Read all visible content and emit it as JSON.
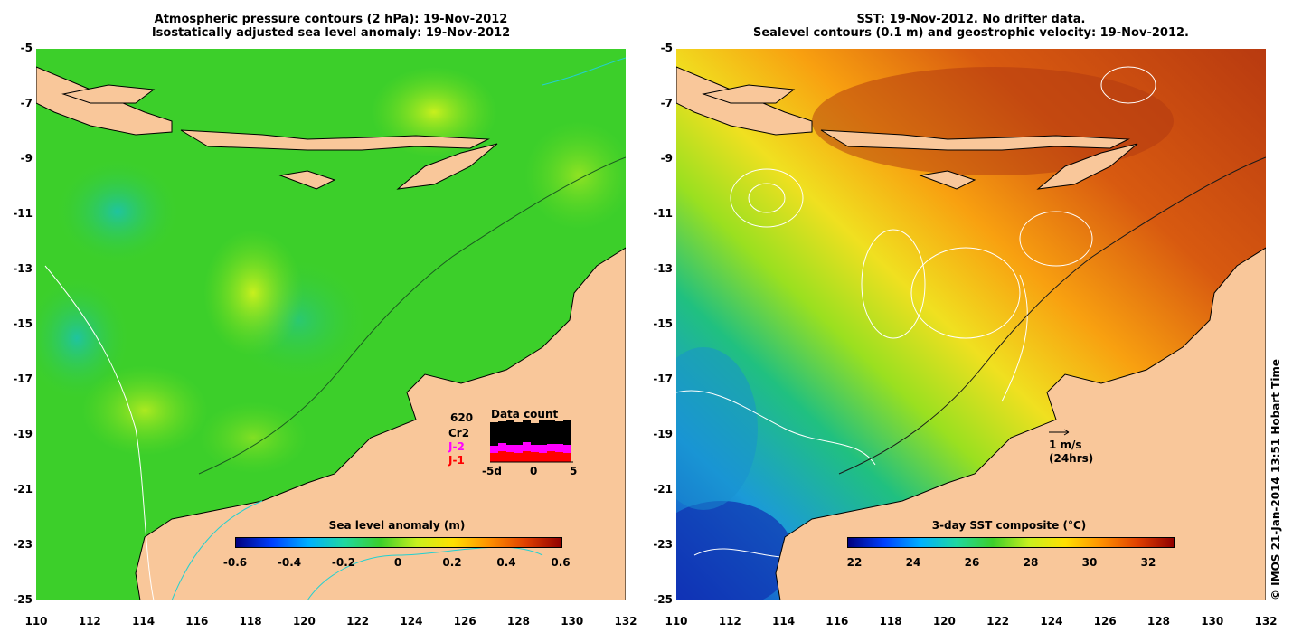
{
  "left": {
    "title_line1": "Atmospheric pressure contours (2 hPa): 19-Nov-2012",
    "title_line2": "Isostatically adjusted sea level anomaly: 19-Nov-2012",
    "colorbar": {
      "title": "Sea level anomaly (m)",
      "ticks": [
        "-0.6",
        "-0.4",
        "-0.2",
        "0",
        "0.2",
        "0.4",
        "0.6"
      ]
    },
    "data_count": {
      "title": "Data count",
      "count": "620",
      "labels": [
        "Cr2",
        "J-2",
        "J-1"
      ],
      "label_colors": [
        "#000000",
        "#ff00ff",
        "#ff0000"
      ],
      "axis_ticks": [
        "-5d",
        "0",
        "5"
      ]
    }
  },
  "right": {
    "title_line1": "SST: 19-Nov-2012. No drifter data.",
    "title_line2": "Sealevel contours (0.1 m) and geostrophic velocity: 19-Nov-2012.",
    "colorbar": {
      "title": "3-day SST composite (°C)",
      "ticks": [
        "22",
        "24",
        "26",
        "28",
        "30",
        "32"
      ]
    },
    "velocity_legend": {
      "speed": "1 m/s",
      "duration": "(24hrs)"
    }
  },
  "axes": {
    "y_ticks": [
      "-5",
      "-7",
      "-9",
      "-11",
      "-13",
      "-15",
      "-17",
      "-19",
      "-21",
      "-23",
      "-25"
    ],
    "x_ticks": [
      "110",
      "112",
      "114",
      "116",
      "118",
      "120",
      "122",
      "124",
      "126",
      "128",
      "130",
      "132"
    ]
  },
  "side_label": "© IMOS 21-Jan-2014 13:51 Hobart Time",
  "colors": {
    "land": "#f9c79a",
    "ocean_sla": "#3ccf2a",
    "sst_hot": "#c4420c",
    "sst_cool": "#1a5bd0"
  }
}
